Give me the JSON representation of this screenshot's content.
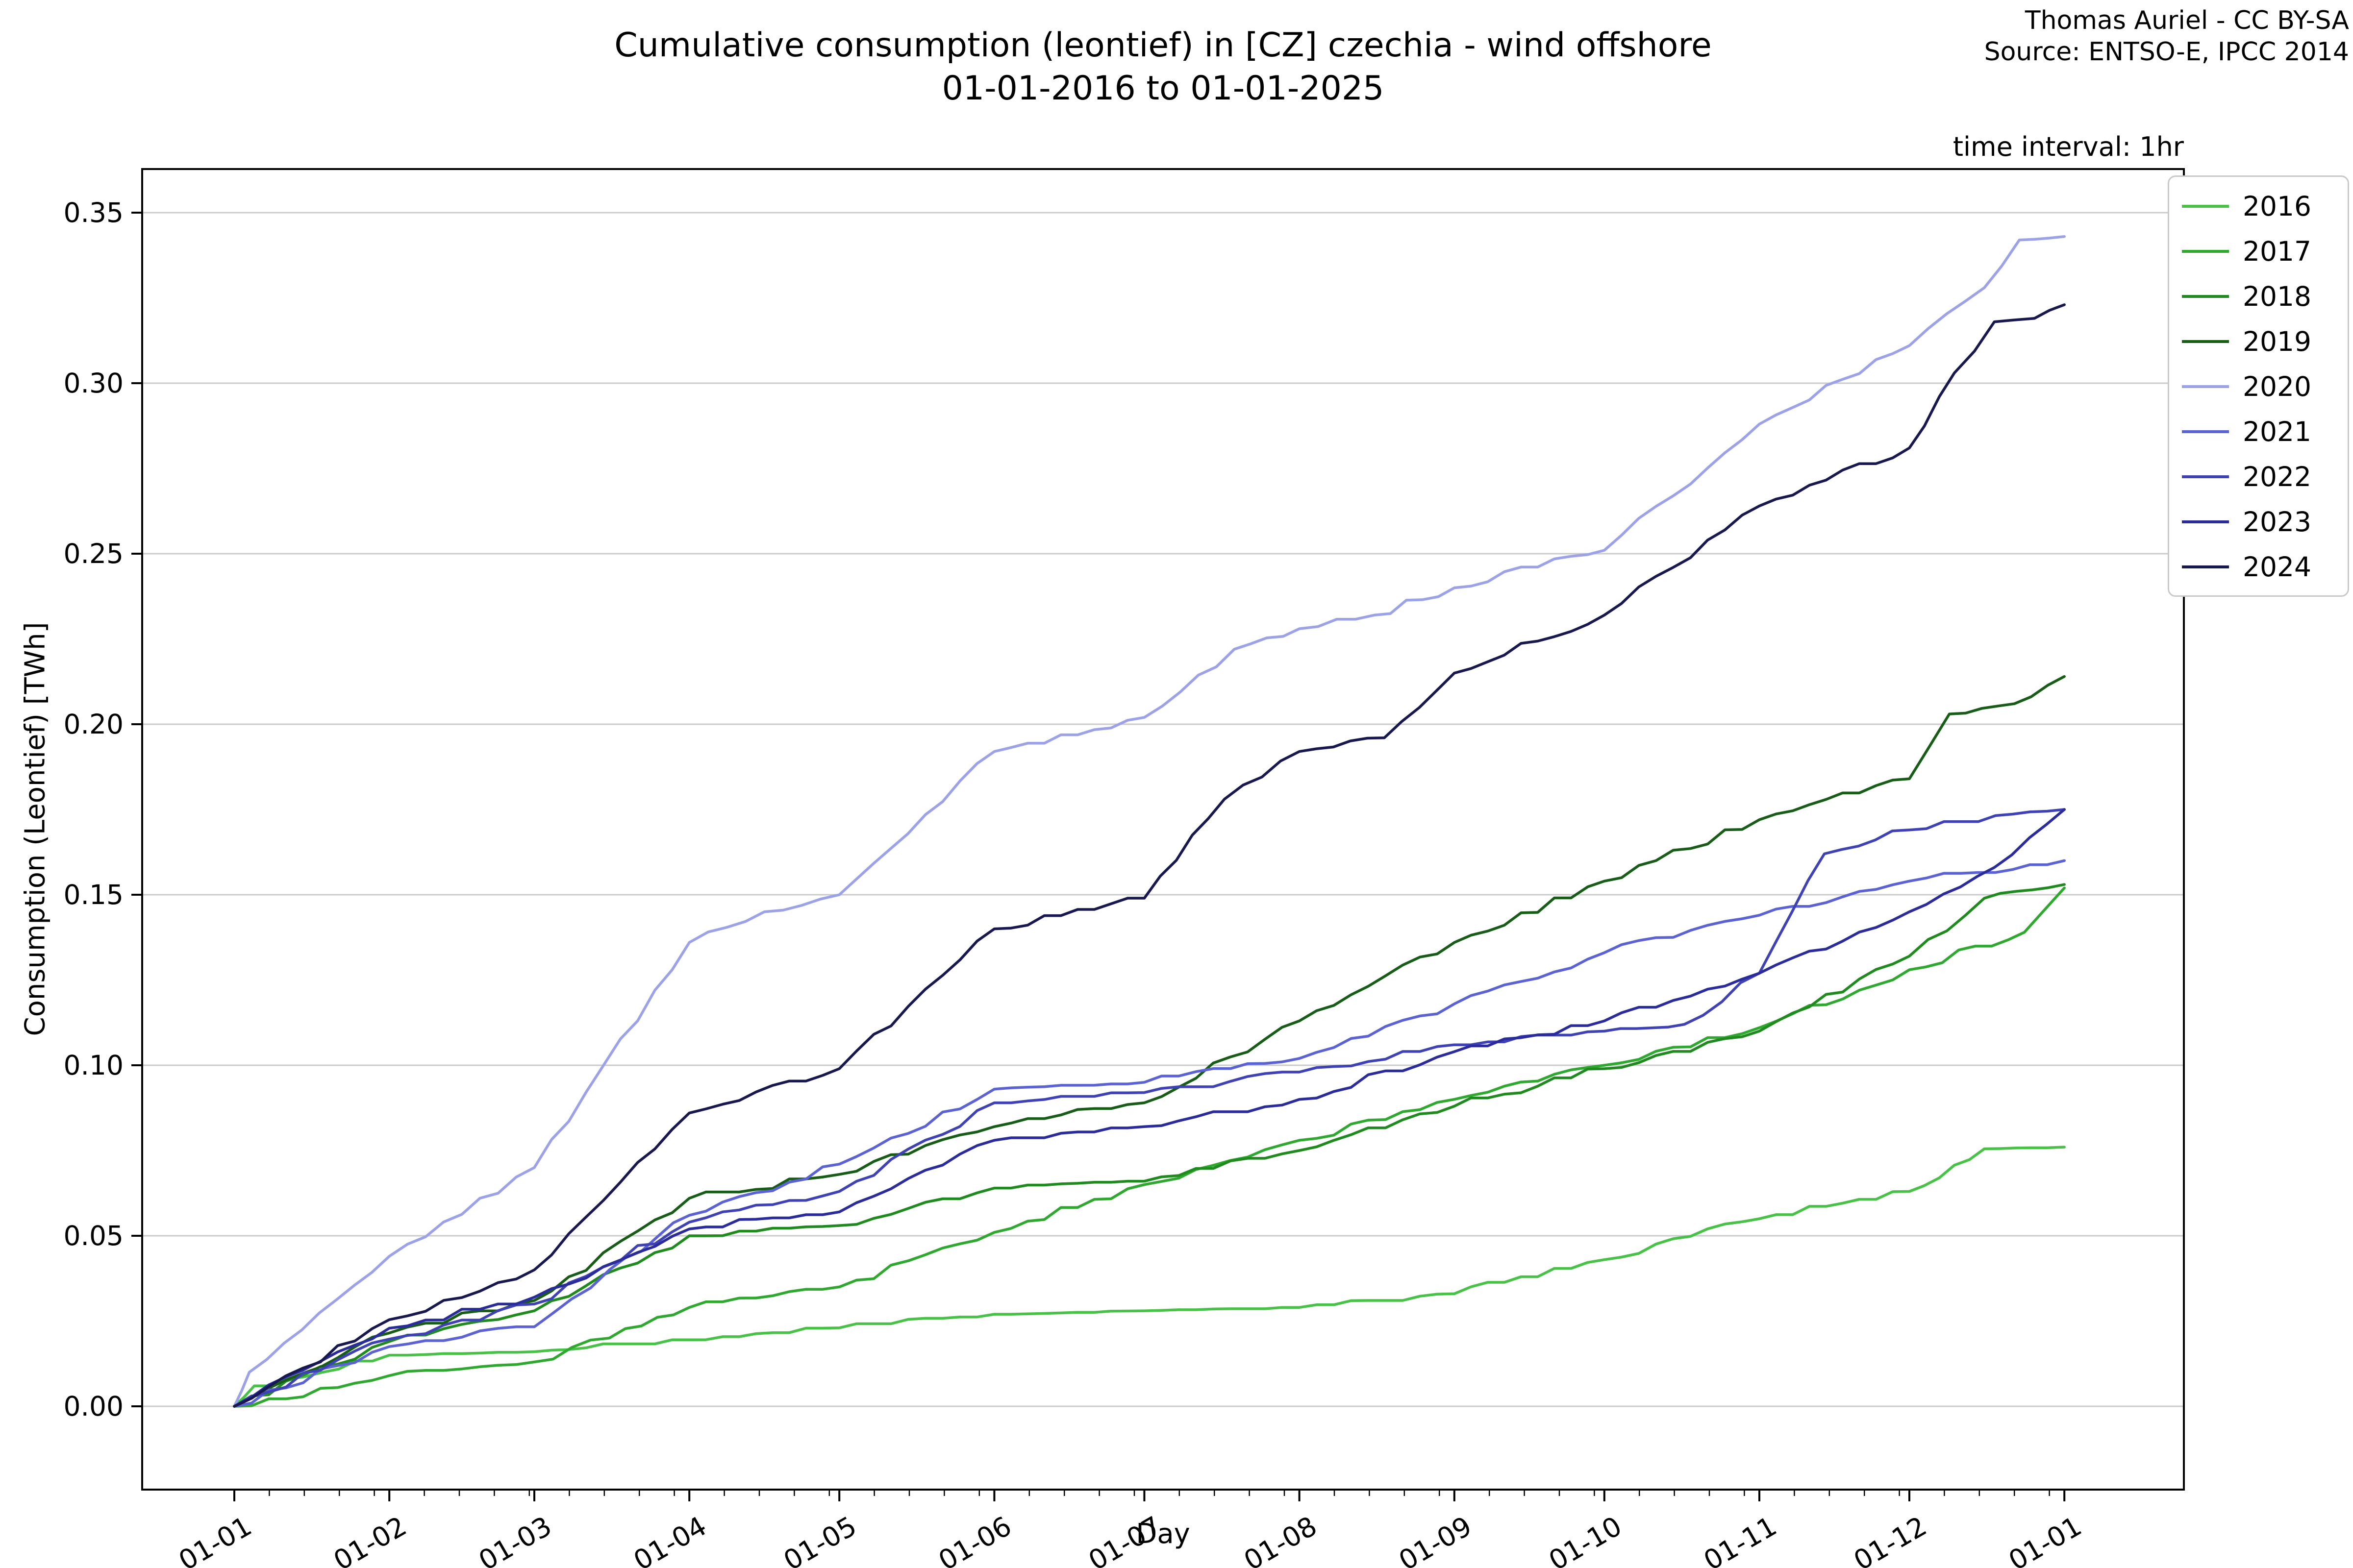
{
  "chart": {
    "title_line1": "Cumulative consumption (leontief) in [CZ] czechia - wind offshore",
    "title_line2": "01-01-2016 to 01-01-2025",
    "attribution_line1": "Thomas Auriel - CC BY-SA",
    "attribution_line2": "Source: ENTSO-E, IPCC 2014",
    "time_interval_note": "time interval: 1hr",
    "xlabel": "Day",
    "ylabel": "Consumption (Leontief) [TWh]"
  },
  "chart_data": {
    "type": "line",
    "title": "Cumulative consumption (leontief) in [CZ] czechia - wind offshore 01-01-2016 to 01-01-2025",
    "xlabel": "Day",
    "ylabel": "Consumption (Leontief) [TWh]",
    "x_unit": "day of year (all years overlaid)",
    "y_unit": "TWh",
    "grid": "horizontal major gridlines only",
    "grid_color": "#cbcbcb",
    "spine_color": "#000000",
    "legend_position": "upper right, outside plot",
    "xtick_labels": [
      "01-01",
      "01-02",
      "01-03",
      "01-04",
      "01-05",
      "01-06",
      "01-07",
      "01-08",
      "01-09",
      "01-10",
      "01-11",
      "01-12",
      "01-01"
    ],
    "xtick_days": [
      0,
      31,
      60,
      91,
      121,
      152,
      182,
      213,
      244,
      274,
      305,
      335,
      366
    ],
    "minor_xtick_step_days": 7,
    "ytick_labels": [
      "0.00",
      "0.05",
      "0.10",
      "0.15",
      "0.20",
      "0.25",
      "0.30",
      "0.35"
    ],
    "ytick_values": [
      0.0,
      0.05,
      0.1,
      0.15,
      0.2,
      0.25,
      0.3,
      0.35
    ],
    "ylim": [
      -0.024,
      0.363
    ],
    "xlim_days": [
      -18.4,
      390
    ],
    "series": [
      {
        "name": "2016",
        "color": "#47c247",
        "points": [
          [
            0,
            0
          ],
          [
            4,
            0.006
          ],
          [
            31,
            0.015
          ],
          [
            60,
            0.016
          ],
          [
            91,
            0.0195
          ],
          [
            121,
            0.023
          ],
          [
            152,
            0.027
          ],
          [
            182,
            0.028
          ],
          [
            213,
            0.029
          ],
          [
            244,
            0.033
          ],
          [
            274,
            0.043
          ],
          [
            305,
            0.055
          ],
          [
            335,
            0.063
          ],
          [
            341,
            0.067
          ],
          [
            350,
            0.0755
          ],
          [
            366,
            0.076
          ]
        ]
      },
      {
        "name": "2017",
        "color": "#2fa82f",
        "points": [
          [
            0,
            0
          ],
          [
            31,
            0.009
          ],
          [
            60,
            0.013
          ],
          [
            75,
            0.02
          ],
          [
            91,
            0.029
          ],
          [
            121,
            0.035
          ],
          [
            152,
            0.051
          ],
          [
            182,
            0.065
          ],
          [
            213,
            0.078
          ],
          [
            244,
            0.09
          ],
          [
            274,
            0.1
          ],
          [
            305,
            0.111
          ],
          [
            335,
            0.128
          ],
          [
            358,
            0.139
          ],
          [
            366,
            0.152
          ]
        ]
      },
      {
        "name": "2018",
        "color": "#1f8b1f",
        "points": [
          [
            0,
            0
          ],
          [
            31,
            0.019
          ],
          [
            60,
            0.028
          ],
          [
            91,
            0.05
          ],
          [
            121,
            0.053
          ],
          [
            152,
            0.064
          ],
          [
            182,
            0.066
          ],
          [
            213,
            0.075
          ],
          [
            244,
            0.088
          ],
          [
            274,
            0.099
          ],
          [
            305,
            0.11
          ],
          [
            335,
            0.132
          ],
          [
            350,
            0.149
          ],
          [
            366,
            0.153
          ]
        ]
      },
      {
        "name": "2019",
        "color": "#175d17",
        "points": [
          [
            0,
            0
          ],
          [
            31,
            0.0215
          ],
          [
            60,
            0.031
          ],
          [
            91,
            0.061
          ],
          [
            121,
            0.068
          ],
          [
            152,
            0.082
          ],
          [
            182,
            0.089
          ],
          [
            213,
            0.113
          ],
          [
            244,
            0.136
          ],
          [
            274,
            0.154
          ],
          [
            305,
            0.172
          ],
          [
            335,
            0.184
          ],
          [
            343,
            0.203
          ],
          [
            356,
            0.206
          ],
          [
            366,
            0.214
          ]
        ]
      },
      {
        "name": "2020",
        "color": "#9ba2e8",
        "points": [
          [
            0,
            0
          ],
          [
            3,
            0.01
          ],
          [
            31,
            0.044
          ],
          [
            60,
            0.07
          ],
          [
            91,
            0.136
          ],
          [
            106,
            0.145
          ],
          [
            121,
            0.15
          ],
          [
            152,
            0.192
          ],
          [
            182,
            0.202
          ],
          [
            200,
            0.222
          ],
          [
            213,
            0.228
          ],
          [
            228,
            0.232
          ],
          [
            244,
            0.24
          ],
          [
            274,
            0.251
          ],
          [
            305,
            0.288
          ],
          [
            335,
            0.311
          ],
          [
            350,
            0.328
          ],
          [
            357,
            0.342
          ],
          [
            366,
            0.343
          ]
        ]
      },
      {
        "name": "2021",
        "color": "#5b62d3",
        "points": [
          [
            0,
            0
          ],
          [
            31,
            0.0175
          ],
          [
            60,
            0.0233
          ],
          [
            75,
            0.04
          ],
          [
            91,
            0.056
          ],
          [
            121,
            0.071
          ],
          [
            152,
            0.093
          ],
          [
            182,
            0.095
          ],
          [
            213,
            0.102
          ],
          [
            244,
            0.118
          ],
          [
            274,
            0.133
          ],
          [
            305,
            0.144
          ],
          [
            335,
            0.154
          ],
          [
            366,
            0.16
          ]
        ]
      },
      {
        "name": "2022",
        "color": "#3e42b4",
        "points": [
          [
            0,
            0
          ],
          [
            31,
            0.0197
          ],
          [
            60,
            0.03
          ],
          [
            91,
            0.054
          ],
          [
            121,
            0.063
          ],
          [
            152,
            0.089
          ],
          [
            182,
            0.092
          ],
          [
            213,
            0.098
          ],
          [
            244,
            0.106
          ],
          [
            274,
            0.11
          ],
          [
            290,
            0.112
          ],
          [
            305,
            0.127
          ],
          [
            318,
            0.162
          ],
          [
            335,
            0.169
          ],
          [
            366,
            0.175
          ]
        ]
      },
      {
        "name": "2023",
        "color": "#2a2c9c",
        "points": [
          [
            0,
            0
          ],
          [
            31,
            0.0229
          ],
          [
            60,
            0.032
          ],
          [
            91,
            0.052
          ],
          [
            121,
            0.057
          ],
          [
            152,
            0.078
          ],
          [
            182,
            0.082
          ],
          [
            213,
            0.09
          ],
          [
            244,
            0.104
          ],
          [
            274,
            0.113
          ],
          [
            305,
            0.127
          ],
          [
            335,
            0.145
          ],
          [
            352,
            0.158
          ],
          [
            366,
            0.175
          ]
        ]
      },
      {
        "name": "2024",
        "color": "#17184f",
        "points": [
          [
            0,
            0
          ],
          [
            31,
            0.0254
          ],
          [
            60,
            0.04
          ],
          [
            91,
            0.086
          ],
          [
            121,
            0.099
          ],
          [
            152,
            0.14
          ],
          [
            182,
            0.149
          ],
          [
            198,
            0.178
          ],
          [
            213,
            0.192
          ],
          [
            230,
            0.196
          ],
          [
            244,
            0.215
          ],
          [
            274,
            0.232
          ],
          [
            305,
            0.264
          ],
          [
            335,
            0.281
          ],
          [
            344,
            0.303
          ],
          [
            352,
            0.318
          ],
          [
            360,
            0.319
          ],
          [
            366,
            0.323
          ]
        ]
      }
    ]
  }
}
